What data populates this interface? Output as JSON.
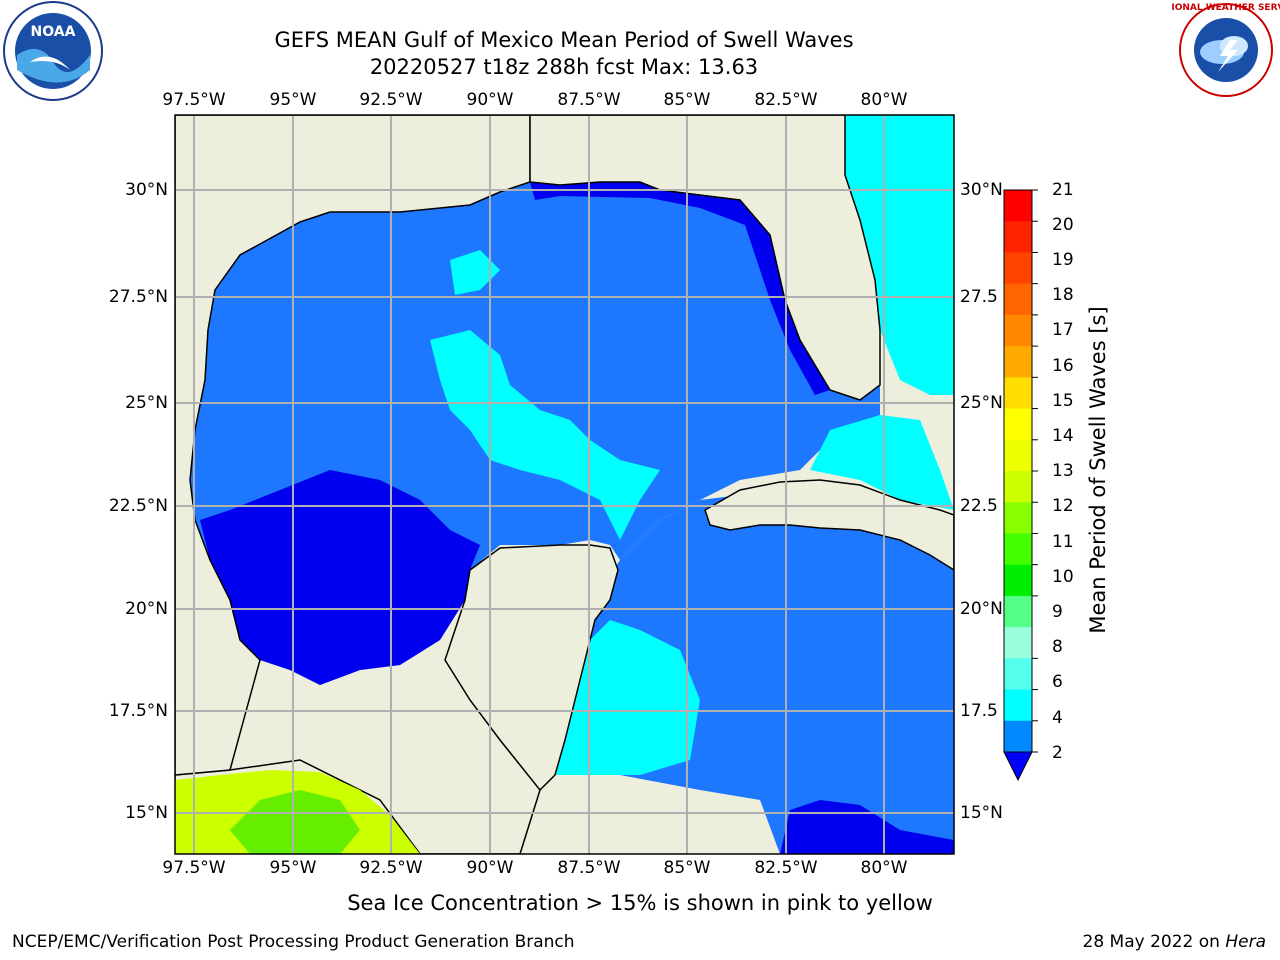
{
  "title": {
    "line1": "GEFS MEAN Gulf of Mexico Mean Period of Swell Waves",
    "line2": "20220527 t18z 288h fcst   Max: 13.63"
  },
  "map": {
    "lon_ticks": [
      "97.5°W",
      "95°W",
      "92.5°W",
      "90°W",
      "87.5°W",
      "85°W",
      "82.5°W",
      "80°W"
    ],
    "lat_ticks_left": [
      "30°N",
      "27.5°N",
      "25°N",
      "22.5°N",
      "20°N",
      "17.5°N",
      "15°N"
    ],
    "lat_ticks_right": [
      "30°N",
      "27.5",
      "25°N",
      "22.5",
      "20°N",
      "17.5",
      "15°N"
    ],
    "colors": {
      "land": "#eeeedd",
      "grid": "#b0b0b0"
    }
  },
  "colorbar": {
    "title": "Mean Period of Swell Waves [s]",
    "labels": [
      "21",
      "20",
      "19",
      "18",
      "17",
      "16",
      "15",
      "14",
      "13",
      "12",
      "11",
      "10",
      "9",
      "8",
      "6",
      "4",
      "2"
    ],
    "colors": [
      "#ff0000",
      "#ff2200",
      "#ff4400",
      "#ff6600",
      "#ff8800",
      "#ffaa00",
      "#ffdd00",
      "#ffff00",
      "#eeff00",
      "#ccff00",
      "#88ff00",
      "#44ff00",
      "#00ee00",
      "#55ff88",
      "#99ffdd",
      "#55ffee",
      "#00ffff",
      "#0088ff"
    ],
    "under_color": "#0000ff"
  },
  "note": "Sea Ice Concentration > 15% is shown in pink to yellow",
  "footer": {
    "left": "NCEP/EMC/Verification Post Processing Product Generation Branch",
    "right_prefix": "28 May 2022 on ",
    "right_host": "Hera"
  },
  "logos": {
    "noaa_text": "NOAA",
    "nws_text": "NATIONAL WEATHER SERVICE"
  }
}
